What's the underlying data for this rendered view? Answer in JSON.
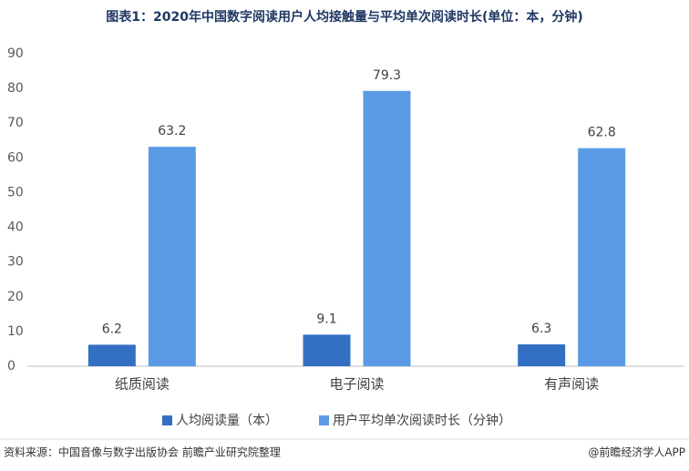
{
  "chart_data": {
    "type": "bar",
    "title": "图表1：2020年中国数字阅读用户人均接触量与平均单次阅读时长(单位：本，分钟)",
    "categories": [
      "纸质阅读",
      "电子阅读",
      "有声阅读"
    ],
    "series": [
      {
        "name": "人均阅读量（本）",
        "color": "#3370c4",
        "values": [
          6.2,
          9.1,
          6.3
        ]
      },
      {
        "name": "用户平均单次阅读时长（分钟）",
        "color": "#5b9be6",
        "values": [
          63.2,
          79.3,
          62.8
        ]
      }
    ],
    "ylim": [
      0,
      90
    ],
    "yticks": [
      0,
      10,
      20,
      30,
      40,
      50,
      60,
      70,
      80,
      90
    ],
    "grid": false,
    "source": "资料来源：中国音像与数字出版协会 前瞻产业研究院整理",
    "credit": "@前瞻经济学人APP"
  }
}
